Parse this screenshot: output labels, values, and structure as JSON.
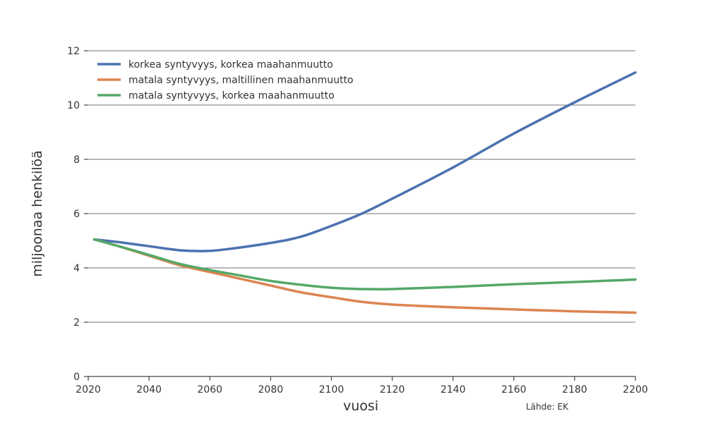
{
  "chart_data": {
    "type": "line",
    "title": "",
    "xlabel": "vuosi",
    "ylabel": "miljoonaa henkilöä",
    "source": "Lähde: EK",
    "xlim": [
      2020,
      2200
    ],
    "ylim": [
      0,
      12
    ],
    "xticks": [
      2020,
      2040,
      2060,
      2080,
      2100,
      2120,
      2140,
      2160,
      2180,
      2200
    ],
    "yticks": [
      0,
      2,
      4,
      6,
      8,
      10,
      12
    ],
    "grid": true,
    "legend_position": "top-left",
    "series": [
      {
        "name": "korkea syntyvyys, korkea maahanmuutto",
        "color": "#4c72b0",
        "x": [
          2022,
          2030,
          2040,
          2050,
          2058,
          2065,
          2080,
          2090,
          2100,
          2110,
          2120,
          2140,
          2160,
          2180,
          2200
        ],
        "values": [
          5.05,
          4.95,
          4.8,
          4.65,
          4.62,
          4.68,
          4.92,
          5.15,
          5.55,
          6.0,
          6.55,
          7.7,
          8.95,
          10.1,
          11.2
        ]
      },
      {
        "name": "matala syntyvyys, maltillinen maahanmuutto",
        "color": "#dd8452",
        "x": [
          2022,
          2030,
          2040,
          2050,
          2060,
          2070,
          2080,
          2090,
          2100,
          2110,
          2120,
          2140,
          2160,
          2180,
          2200
        ],
        "values": [
          5.05,
          4.8,
          4.45,
          4.1,
          3.85,
          3.6,
          3.35,
          3.1,
          2.92,
          2.75,
          2.65,
          2.55,
          2.47,
          2.4,
          2.35
        ]
      },
      {
        "name": "matala syntyvyys, korkea maahanmuutto",
        "color": "#55a868",
        "x": [
          2022,
          2030,
          2040,
          2050,
          2060,
          2070,
          2080,
          2090,
          2100,
          2110,
          2120,
          2140,
          2160,
          2180,
          2200
        ],
        "values": [
          5.05,
          4.8,
          4.48,
          4.15,
          3.92,
          3.72,
          3.52,
          3.38,
          3.27,
          3.22,
          3.22,
          3.3,
          3.4,
          3.48,
          3.57
        ]
      }
    ]
  }
}
